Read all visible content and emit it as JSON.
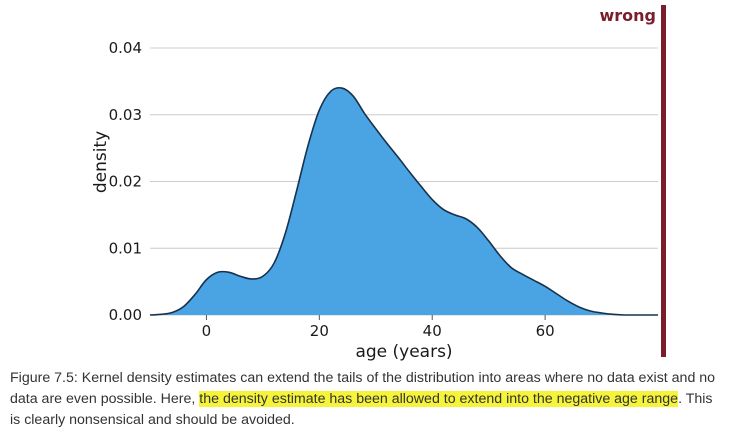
{
  "chart_data": {
    "type": "area",
    "xlabel": "age (years)",
    "ylabel": "density",
    "xlim": [
      -10,
      80
    ],
    "ylim": [
      0,
      0.04
    ],
    "x_ticks": [
      0,
      20,
      40,
      60
    ],
    "x_tick_labels": [
      "0",
      "20",
      "40",
      "60"
    ],
    "y_ticks": [
      0,
      0.01,
      0.02,
      0.03,
      0.04
    ],
    "y_tick_labels": [
      "0.00",
      "0.01",
      "0.02",
      "0.03",
      "0.04"
    ],
    "grid": "horizontal",
    "fill_color": "#4aa3e3",
    "line_color": "#17324d",
    "grid_color": "#cccccc",
    "series": [
      {
        "x": [
          -10,
          -8,
          -6,
          -4,
          -2,
          0,
          2,
          4,
          6,
          8,
          10,
          12,
          14,
          16,
          18,
          20,
          22,
          24,
          26,
          28,
          30,
          32,
          34,
          36,
          38,
          40,
          42,
          44,
          46,
          48,
          50,
          52,
          54,
          56,
          58,
          60,
          62,
          64,
          66,
          68,
          70,
          72,
          74,
          76,
          78,
          80
        ],
        "y": [
          0.0,
          0.0001,
          0.0004,
          0.0013,
          0.0031,
          0.0053,
          0.0064,
          0.0064,
          0.0058,
          0.0054,
          0.0058,
          0.0078,
          0.0123,
          0.0187,
          0.0254,
          0.0307,
          0.0335,
          0.034,
          0.0328,
          0.0302,
          0.0279,
          0.0257,
          0.0236,
          0.0214,
          0.0193,
          0.0173,
          0.0158,
          0.015,
          0.0144,
          0.0131,
          0.0111,
          0.0089,
          0.0071,
          0.0061,
          0.0052,
          0.0043,
          0.0032,
          0.0021,
          0.0012,
          0.0006,
          0.0003,
          0.0001,
          0.0,
          0.0,
          0.0,
          0.0
        ]
      }
    ]
  },
  "stamp": {
    "label": "wrong",
    "color": "#7a1e2c"
  },
  "caption": {
    "lead": "Figure 7.5: Kernel density estimates can extend the tails of the distribution into areas where no data exist and no data are even possible. Here, ",
    "highlight": "the density estimate has been allowed to extend into the negative age range",
    "tail": ". This is clearly nonsensical and should be avoided.",
    "highlight_color": "#f6f43a"
  }
}
